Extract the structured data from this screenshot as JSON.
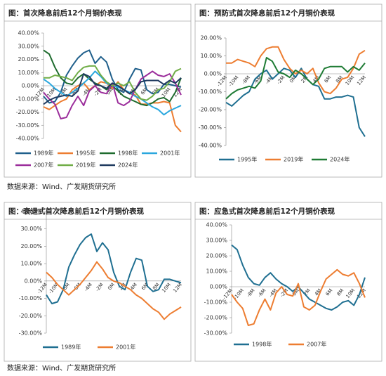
{
  "chart_data": [
    {
      "type": "line",
      "title": "图：首次降息前后12个月铜价表现",
      "categories": [
        "-12M",
        null,
        "-10M",
        null,
        "-8M",
        null,
        "-6M",
        null,
        "-4M",
        null,
        "-2M",
        null,
        "0M",
        null,
        "2M",
        null,
        "4M",
        null,
        "6M",
        null,
        "8M",
        null,
        "10M",
        null,
        "12M"
      ],
      "ylim": [
        -40,
        40
      ],
      "yticks": [
        {
          "value": -40,
          "label": "-40.00%"
        },
        {
          "value": -30,
          "label": "-30.00%"
        },
        {
          "value": -20,
          "label": "-20.00%"
        },
        {
          "value": -10,
          "label": "-10.00%"
        },
        {
          "value": 0,
          "label": "0.00%"
        },
        {
          "value": 10,
          "label": "10.00%"
        },
        {
          "value": 20,
          "label": "20.00%"
        },
        {
          "value": 30,
          "label": "30.00%"
        },
        {
          "value": 40,
          "label": "40.00%"
        }
      ],
      "series": [
        {
          "name": "1989年",
          "color": "#1f5f8b",
          "values": [
            -8,
            -13,
            -12,
            -5,
            8,
            15,
            21,
            25,
            27,
            17,
            22,
            18,
            5,
            -3,
            -5,
            5,
            13,
            12,
            -3,
            -6,
            -5,
            1,
            1,
            0,
            -1
          ]
        },
        {
          "name": "1995年",
          "color": "#ed7d31",
          "values": [
            -16,
            -18,
            -15,
            -12,
            -10,
            -3,
            0,
            2,
            -3,
            0,
            3,
            2,
            -2,
            3,
            -3,
            -6,
            -7,
            -14,
            -14,
            -13,
            -13,
            -12,
            -13,
            -30,
            -35
          ]
        },
        {
          "name": "1998年",
          "color": "#1e6b2e",
          "values": [
            27,
            24,
            14,
            6,
            2,
            1,
            6,
            9,
            5,
            2,
            0,
            -3,
            0,
            -4,
            -8,
            -10,
            -12,
            -14,
            -15,
            -13,
            -10,
            -9,
            -12,
            -5,
            6
          ]
        },
        {
          "name": "2001年",
          "color": "#2aa7de",
          "values": [
            5,
            2,
            -2,
            -5,
            -8,
            -5,
            -2,
            2,
            6,
            11,
            7,
            2,
            0,
            -1,
            -3,
            -5,
            -8,
            -10,
            -13,
            -16,
            -18,
            -22,
            -19,
            -17,
            -15
          ]
        },
        {
          "name": "2007年",
          "color": "#9b2d9b",
          "values": [
            -5,
            -10,
            -14,
            -25,
            -24,
            -15,
            -8,
            -15,
            -4,
            0,
            -5,
            -6,
            2,
            -13,
            -15,
            -12,
            -3,
            5,
            8,
            11,
            8,
            7,
            9,
            2,
            -7
          ]
        },
        {
          "name": "2019年",
          "color": "#70ad47",
          "values": [
            6,
            6,
            8,
            7,
            6,
            4,
            10,
            14,
            15,
            15,
            8,
            3,
            0,
            2,
            0,
            3,
            -5,
            -10,
            -11,
            -8,
            -3,
            -2,
            3,
            11,
            13
          ]
        },
        {
          "name": "2024年",
          "color": "#1f3a5f",
          "values": [
            -14,
            -11,
            -9,
            -8,
            -7,
            -8,
            -4,
            9,
            7,
            1,
            0,
            -2,
            2,
            0,
            -3,
            -6,
            -3,
            3,
            4,
            4,
            4,
            1,
            4,
            2,
            6
          ]
        }
      ]
    },
    {
      "type": "line",
      "title": "图：预防式首次降息前后12个月铜价表现",
      "categories": [
        "-12M",
        null,
        "-10M",
        null,
        "-8M",
        null,
        "-6M",
        null,
        "-4M",
        null,
        "-2M",
        null,
        "0M",
        null,
        "2M",
        null,
        "4M",
        null,
        "6M",
        null,
        "8M",
        null,
        "10M",
        null,
        "12M"
      ],
      "ylim": [
        -40,
        20
      ],
      "yticks": [
        {
          "value": -40,
          "label": "-40.00%"
        },
        {
          "value": -30,
          "label": "-30.00%"
        },
        {
          "value": -20,
          "label": "-20.00%"
        },
        {
          "value": -10,
          "label": "-10.00%"
        },
        {
          "value": 0,
          "label": "0.00%"
        },
        {
          "value": 10,
          "label": "10.00%"
        },
        {
          "value": 20,
          "label": "20.00%"
        }
      ],
      "series": [
        {
          "name": "1995年",
          "color": "#1f6f91",
          "values": [
            -16,
            -18,
            -15,
            -12,
            -10,
            -3,
            0,
            2,
            -3,
            0,
            3,
            2,
            -2,
            3,
            -3,
            -6,
            -7,
            -14,
            -14,
            -13,
            -13,
            -12,
            -13,
            -30,
            -35
          ]
        },
        {
          "name": "2019年",
          "color": "#ed7d31",
          "values": [
            6,
            6,
            8,
            7,
            6,
            4,
            10,
            14,
            15,
            15,
            8,
            3,
            0,
            2,
            0,
            3,
            -5,
            -10,
            -11,
            -8,
            -3,
            -2,
            3,
            11,
            13
          ]
        },
        {
          "name": "2024年",
          "color": "#1e7b34",
          "values": [
            -14,
            -11,
            -9,
            -8,
            -7,
            -8,
            -4,
            9,
            7,
            1,
            0,
            -2,
            2,
            0,
            -3,
            -6,
            -3,
            3,
            4,
            4,
            4,
            1,
            4,
            2,
            6
          ]
        }
      ]
    },
    {
      "type": "line",
      "title": "图：衰退式首次降息前后12个月铜价表现",
      "categories": [
        "-12M",
        null,
        "-10M",
        null,
        "-8M",
        null,
        "-6M",
        null,
        "-4M",
        null,
        "-2M",
        null,
        "0M",
        null,
        "2M",
        null,
        "4M",
        null,
        "6M",
        null,
        "8M",
        null,
        "10M",
        null,
        "12M"
      ],
      "ylim": [
        -30,
        40
      ],
      "yticks": [
        {
          "value": -30,
          "label": "-30.00%"
        },
        {
          "value": -20,
          "label": "-20.00%"
        },
        {
          "value": -10,
          "label": "-10.00%"
        },
        {
          "value": 0,
          "label": "0.00%"
        },
        {
          "value": 10,
          "label": "10.00%"
        },
        {
          "value": 20,
          "label": "20.00%"
        },
        {
          "value": 30,
          "label": "30.00%"
        },
        {
          "value": 40,
          "label": "40.00%"
        }
      ],
      "series": [
        {
          "name": "1989年",
          "color": "#1f6f91",
          "values": [
            -8,
            -13,
            -12,
            -5,
            8,
            15,
            21,
            25,
            27,
            17,
            22,
            18,
            5,
            -3,
            -5,
            5,
            13,
            12,
            -3,
            -6,
            -5,
            1,
            1,
            0,
            -1
          ]
        },
        {
          "name": "2001年",
          "color": "#ed7d31",
          "values": [
            5,
            2,
            -2,
            -5,
            -8,
            -5,
            -2,
            2,
            6,
            11,
            7,
            2,
            0,
            -1,
            -3,
            -5,
            -8,
            -10,
            -13,
            -16,
            -18,
            -22,
            -19,
            -17,
            -15
          ]
        }
      ]
    },
    {
      "type": "line",
      "title": "图：应急式首次降息前后12个月铜价表现",
      "categories": [
        "-12M",
        null,
        "-10M",
        null,
        "-8M",
        null,
        "-6M",
        null,
        "-4M",
        null,
        "-2M",
        null,
        "0M",
        null,
        "2M",
        null,
        "4M",
        null,
        "6M",
        null,
        "8M",
        null,
        "10M",
        null,
        "12M"
      ],
      "ylim": [
        -30,
        40
      ],
      "yticks": [
        {
          "value": -30,
          "label": "-30.00%"
        },
        {
          "value": -20,
          "label": "-20.00%"
        },
        {
          "value": -10,
          "label": "-10.00%"
        },
        {
          "value": 0,
          "label": "0.00%"
        },
        {
          "value": 10,
          "label": "10.00%"
        },
        {
          "value": 20,
          "label": "20.00%"
        },
        {
          "value": 30,
          "label": "30.00%"
        },
        {
          "value": 40,
          "label": "40.00%"
        }
      ],
      "series": [
        {
          "name": "1998年",
          "color": "#1f6f91",
          "values": [
            27,
            24,
            14,
            6,
            2,
            1,
            6,
            9,
            5,
            2,
            0,
            -3,
            0,
            -4,
            -8,
            -10,
            -12,
            -14,
            -15,
            -13,
            -10,
            -9,
            -12,
            -5,
            6
          ]
        },
        {
          "name": "2007年",
          "color": "#ed7d31",
          "values": [
            -5,
            -10,
            -14,
            -25,
            -24,
            -15,
            -8,
            -15,
            -4,
            0,
            -5,
            -6,
            2,
            -13,
            -15,
            -12,
            -3,
            5,
            8,
            11,
            8,
            7,
            9,
            2,
            -7
          ]
        }
      ]
    }
  ],
  "sources": [
    "数据来源：Wind、广发期货研究所",
    "数据来源：Wind、广发期货研究所"
  ]
}
